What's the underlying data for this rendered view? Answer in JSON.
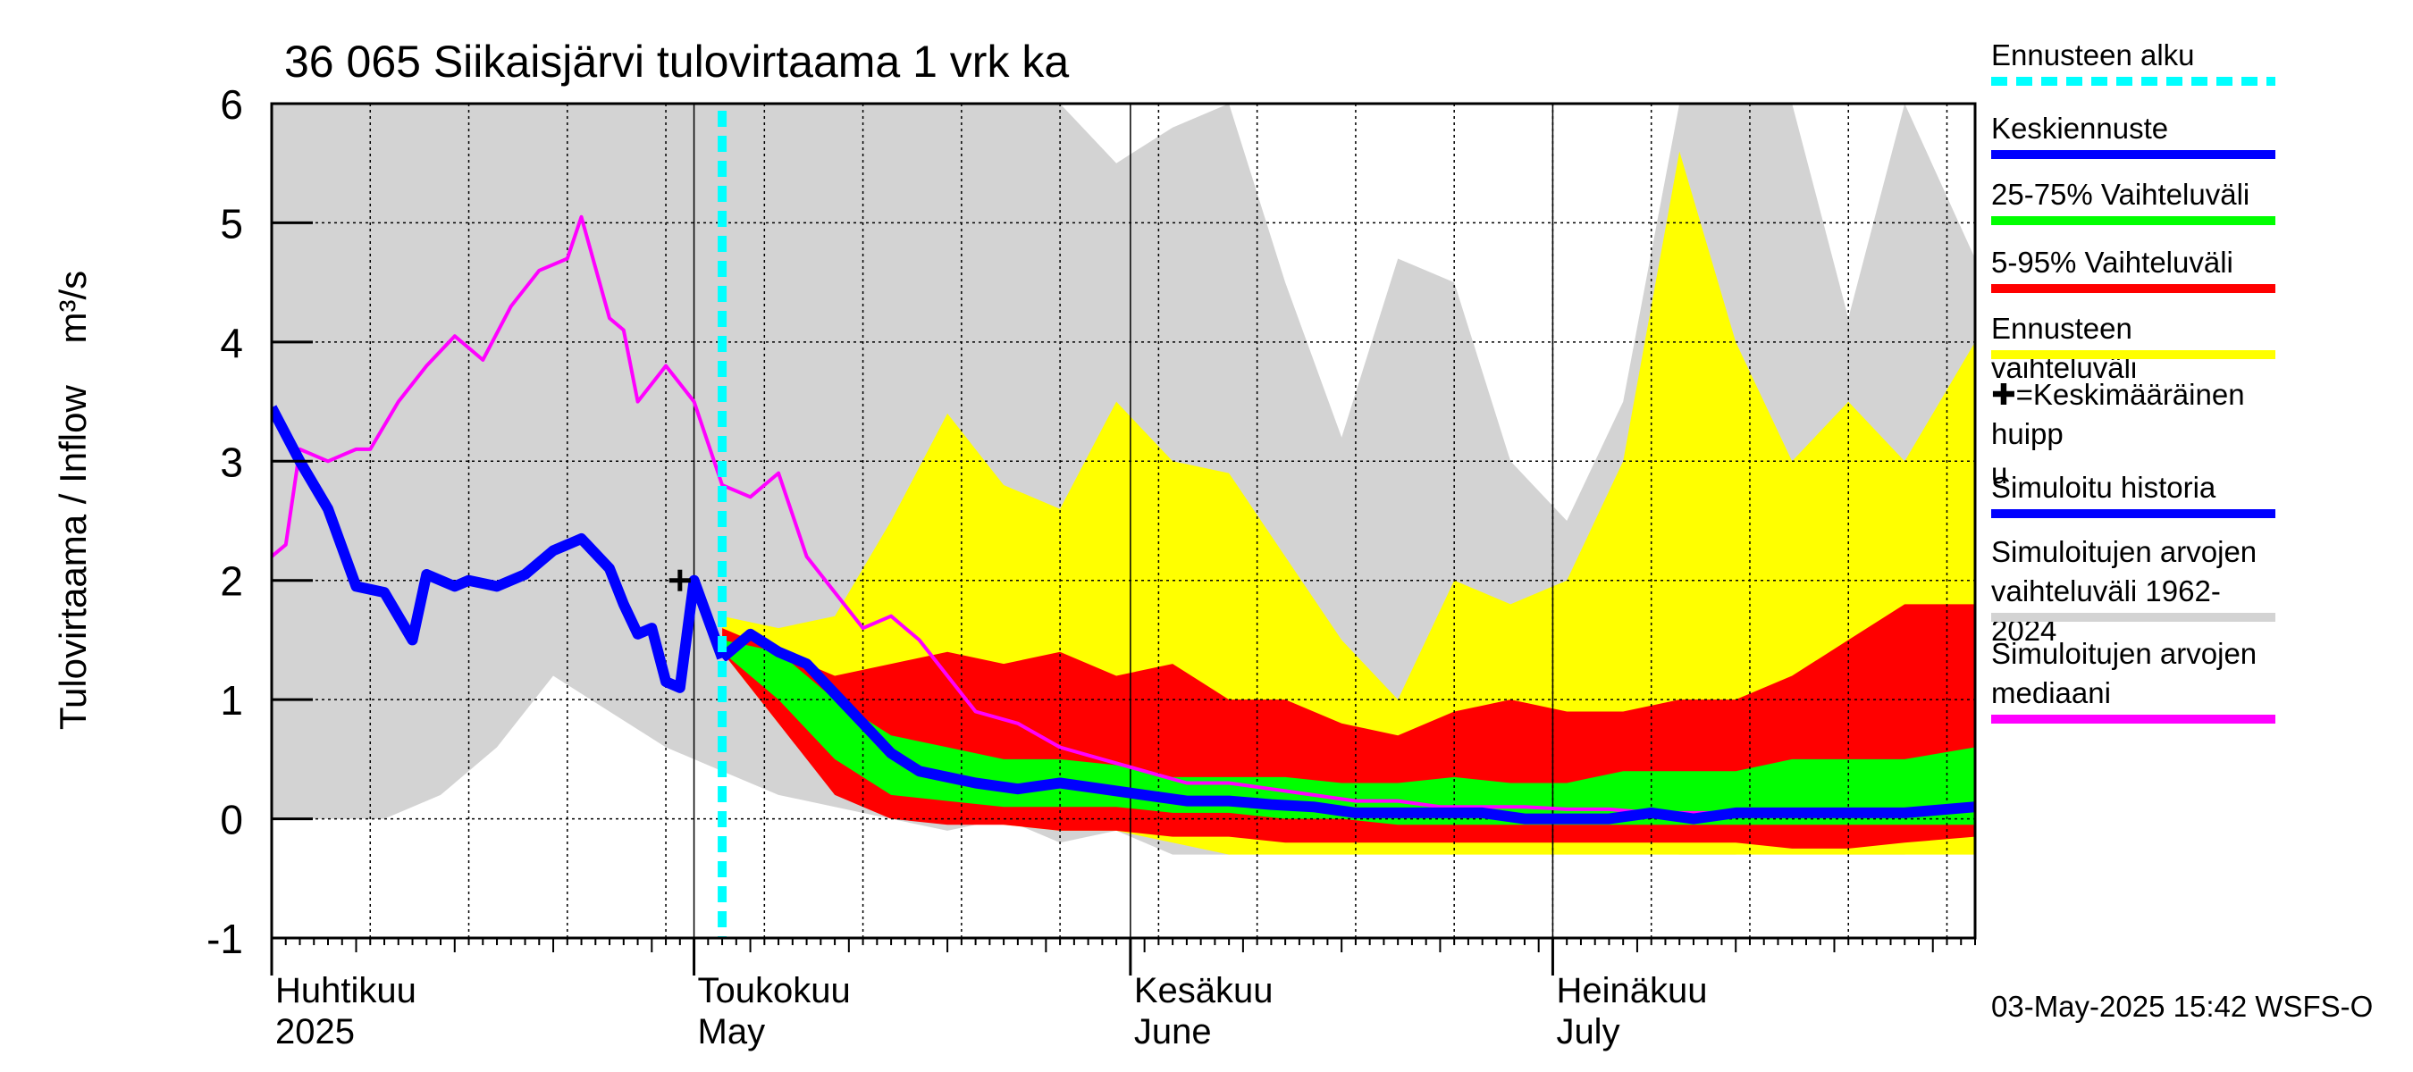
{
  "chart_data": {
    "type": "area",
    "title": "36 065 Siikaisjärvi tulovirtaama 1 vrk ka",
    "ylabel": "Tulovirtaama / Inflow    m³/s",
    "ylim": [
      -1,
      6
    ],
    "yticks": [
      "-1",
      "0",
      "1",
      "2",
      "3",
      "4",
      "5",
      "6"
    ],
    "xlim": [
      "2025-04-01",
      "2025-07-31"
    ],
    "month_labels": [
      {
        "fi": "Huhtikuu",
        "en": "2025",
        "date": "2025-04-01"
      },
      {
        "fi": "Toukokuu",
        "en": "May",
        "date": "2025-05-01"
      },
      {
        "fi": "Kesäkuu",
        "en": "June",
        "date": "2025-06-01"
      },
      {
        "fi": "Heinäkuu",
        "en": "July",
        "date": "2025-07-01"
      }
    ],
    "forecast_start": "2025-05-03",
    "mean_peak": {
      "date": "2025-04-30",
      "value": 2.0
    },
    "grid": true,
    "series": [
      {
        "name": "Simuloitujen arvojen vaihteluväli 1962-2024",
        "kind": "band",
        "color": "#d3d3d3",
        "x": [
          "2025-04-01",
          "2025-04-05",
          "2025-04-09",
          "2025-04-13",
          "2025-04-17",
          "2025-04-21",
          "2025-04-25",
          "2025-04-29",
          "2025-05-03",
          "2025-05-07",
          "2025-05-11",
          "2025-05-15",
          "2025-05-19",
          "2025-05-23",
          "2025-05-27",
          "2025-05-31",
          "2025-06-04",
          "2025-06-08",
          "2025-06-12",
          "2025-06-16",
          "2025-06-20",
          "2025-06-24",
          "2025-06-28",
          "2025-07-02",
          "2025-07-06",
          "2025-07-10",
          "2025-07-14",
          "2025-07-18",
          "2025-07-22",
          "2025-07-26",
          "2025-07-31"
        ],
        "low": [
          0.0,
          0.0,
          0.0,
          0.2,
          0.6,
          1.2,
          0.9,
          0.6,
          0.4,
          0.2,
          0.1,
          0.0,
          -0.1,
          0.0,
          -0.2,
          -0.1,
          -0.3,
          -0.3,
          -0.2,
          -0.2,
          -0.3,
          -0.2,
          -0.2,
          -0.3,
          -0.2,
          -0.3,
          -0.3,
          -0.2,
          -0.3,
          -0.3,
          -0.2
        ],
        "high": [
          6.0,
          6.0,
          6.0,
          6.0,
          6.0,
          6.0,
          6.0,
          6.0,
          6.0,
          6.0,
          6.0,
          6.0,
          6.0,
          6.0,
          6.0,
          5.5,
          5.8,
          6.0,
          4.5,
          3.2,
          4.7,
          4.5,
          3.0,
          2.5,
          3.5,
          6.0,
          6.0,
          6.0,
          4.2,
          6.0,
          4.7
        ]
      },
      {
        "name": "Ennusteen vaihteluväli",
        "kind": "band",
        "color": "#ffff00",
        "x": [
          "2025-05-03",
          "2025-05-07",
          "2025-05-11",
          "2025-05-15",
          "2025-05-19",
          "2025-05-23",
          "2025-05-27",
          "2025-05-31",
          "2025-06-04",
          "2025-06-08",
          "2025-06-12",
          "2025-06-16",
          "2025-06-20",
          "2025-06-24",
          "2025-06-28",
          "2025-07-02",
          "2025-07-06",
          "2025-07-10",
          "2025-07-14",
          "2025-07-18",
          "2025-07-22",
          "2025-07-26",
          "2025-07-31"
        ],
        "low": [
          1.4,
          0.8,
          0.3,
          0.1,
          0.0,
          -0.05,
          -0.1,
          -0.1,
          -0.2,
          -0.3,
          -0.3,
          -0.3,
          -0.3,
          -0.3,
          -0.3,
          -0.3,
          -0.3,
          -0.3,
          -0.3,
          -0.3,
          -0.3,
          -0.3,
          -0.3
        ],
        "high": [
          1.7,
          1.6,
          1.7,
          2.5,
          3.4,
          2.8,
          2.6,
          3.5,
          3.0,
          2.9,
          2.2,
          1.5,
          1.0,
          2.0,
          1.8,
          2.0,
          3.0,
          5.6,
          4.0,
          3.0,
          3.5,
          3.0,
          4.0
        ]
      },
      {
        "name": "5-95% Vaihteluväli",
        "kind": "band",
        "color": "#ff0000",
        "x": [
          "2025-05-03",
          "2025-05-07",
          "2025-05-11",
          "2025-05-15",
          "2025-05-19",
          "2025-05-23",
          "2025-05-27",
          "2025-05-31",
          "2025-06-04",
          "2025-06-08",
          "2025-06-12",
          "2025-06-16",
          "2025-06-20",
          "2025-06-24",
          "2025-06-28",
          "2025-07-02",
          "2025-07-06",
          "2025-07-10",
          "2025-07-14",
          "2025-07-18",
          "2025-07-22",
          "2025-07-26",
          "2025-07-31"
        ],
        "low": [
          1.4,
          0.8,
          0.2,
          0.0,
          -0.05,
          -0.05,
          -0.1,
          -0.1,
          -0.15,
          -0.15,
          -0.2,
          -0.2,
          -0.2,
          -0.2,
          -0.2,
          -0.2,
          -0.2,
          -0.2,
          -0.2,
          -0.25,
          -0.25,
          -0.2,
          -0.15
        ],
        "high": [
          1.6,
          1.4,
          1.2,
          1.3,
          1.4,
          1.3,
          1.4,
          1.2,
          1.3,
          1.0,
          1.0,
          0.8,
          0.7,
          0.9,
          1.0,
          0.9,
          0.9,
          1.0,
          1.0,
          1.2,
          1.5,
          1.8,
          1.8
        ]
      },
      {
        "name": "25-75% Vaihteluväli",
        "kind": "band",
        "color": "#00ff00",
        "x": [
          "2025-05-03",
          "2025-05-07",
          "2025-05-11",
          "2025-05-15",
          "2025-05-19",
          "2025-05-23",
          "2025-05-27",
          "2025-05-31",
          "2025-06-04",
          "2025-06-08",
          "2025-06-12",
          "2025-06-16",
          "2025-06-20",
          "2025-06-24",
          "2025-06-28",
          "2025-07-02",
          "2025-07-06",
          "2025-07-10",
          "2025-07-14",
          "2025-07-18",
          "2025-07-22",
          "2025-07-26",
          "2025-07-31"
        ],
        "low": [
          1.4,
          1.0,
          0.5,
          0.2,
          0.15,
          0.1,
          0.1,
          0.1,
          0.05,
          0.05,
          0.0,
          0.0,
          -0.05,
          -0.05,
          -0.05,
          -0.05,
          -0.05,
          -0.05,
          -0.05,
          -0.05,
          -0.05,
          -0.05,
          -0.05
        ],
        "high": [
          1.5,
          1.4,
          1.0,
          0.7,
          0.6,
          0.5,
          0.5,
          0.45,
          0.35,
          0.35,
          0.35,
          0.3,
          0.3,
          0.35,
          0.3,
          0.3,
          0.4,
          0.4,
          0.4,
          0.5,
          0.5,
          0.5,
          0.6
        ]
      },
      {
        "name": "Simuloitujen arvojen mediaani",
        "kind": "line",
        "color": "#ff00ff",
        "x": [
          "2025-04-01",
          "2025-04-02",
          "2025-04-03",
          "2025-04-05",
          "2025-04-07",
          "2025-04-08",
          "2025-04-10",
          "2025-04-12",
          "2025-04-14",
          "2025-04-16",
          "2025-04-18",
          "2025-04-20",
          "2025-04-22",
          "2025-04-23",
          "2025-04-25",
          "2025-04-26",
          "2025-04-27",
          "2025-04-29",
          "2025-05-01",
          "2025-05-03",
          "2025-05-05",
          "2025-05-07",
          "2025-05-09",
          "2025-05-11",
          "2025-05-13",
          "2025-05-15",
          "2025-05-17",
          "2025-05-19",
          "2025-05-21",
          "2025-05-24",
          "2025-05-27",
          "2025-05-30",
          "2025-06-02",
          "2025-06-05",
          "2025-06-08",
          "2025-06-11",
          "2025-06-14",
          "2025-06-17",
          "2025-06-20",
          "2025-06-23",
          "2025-06-26",
          "2025-06-29",
          "2025-07-02",
          "2025-07-05",
          "2025-07-08",
          "2025-07-11",
          "2025-07-14",
          "2025-07-17",
          "2025-07-20",
          "2025-07-23",
          "2025-07-26",
          "2025-07-31"
        ],
        "y": [
          2.2,
          2.3,
          3.1,
          3.0,
          3.1,
          3.1,
          3.5,
          3.8,
          4.05,
          3.85,
          4.3,
          4.6,
          4.7,
          5.05,
          4.2,
          4.1,
          3.5,
          3.8,
          3.5,
          2.8,
          2.7,
          2.9,
          2.2,
          1.9,
          1.6,
          1.7,
          1.5,
          1.2,
          0.9,
          0.8,
          0.6,
          0.5,
          0.4,
          0.3,
          0.3,
          0.25,
          0.2,
          0.15,
          0.15,
          0.1,
          0.1,
          0.1,
          0.08,
          0.08,
          0.05,
          0.05,
          0.05,
          0.05,
          0.05,
          0.05,
          0.05,
          0.08
        ]
      },
      {
        "name": "Simuloitu historia",
        "kind": "line",
        "color": "#0000ff",
        "x": [
          "2025-04-01",
          "2025-04-03",
          "2025-04-05",
          "2025-04-07",
          "2025-04-09",
          "2025-04-11",
          "2025-04-12",
          "2025-04-14",
          "2025-04-15",
          "2025-04-17",
          "2025-04-19",
          "2025-04-21",
          "2025-04-23",
          "2025-04-25",
          "2025-04-26",
          "2025-04-27",
          "2025-04-28",
          "2025-04-29",
          "2025-04-30",
          "2025-05-01",
          "2025-05-03"
        ],
        "y": [
          3.45,
          3.0,
          2.6,
          1.95,
          1.9,
          1.5,
          2.05,
          1.95,
          2.0,
          1.95,
          2.05,
          2.25,
          2.35,
          2.1,
          1.8,
          1.55,
          1.6,
          1.15,
          1.1,
          2.0,
          1.35
        ]
      },
      {
        "name": "Keskiennuste",
        "kind": "line",
        "color": "#0000ff",
        "x": [
          "2025-05-03",
          "2025-05-05",
          "2025-05-07",
          "2025-05-09",
          "2025-05-11",
          "2025-05-13",
          "2025-05-15",
          "2025-05-17",
          "2025-05-19",
          "2025-05-21",
          "2025-05-24",
          "2025-05-27",
          "2025-05-30",
          "2025-06-02",
          "2025-06-05",
          "2025-06-08",
          "2025-06-11",
          "2025-06-14",
          "2025-06-17",
          "2025-06-20",
          "2025-06-23",
          "2025-06-26",
          "2025-06-29",
          "2025-07-02",
          "2025-07-05",
          "2025-07-08",
          "2025-07-11",
          "2025-07-14",
          "2025-07-17",
          "2025-07-20",
          "2025-07-23",
          "2025-07-26",
          "2025-07-31"
        ],
        "y": [
          1.35,
          1.55,
          1.4,
          1.3,
          1.05,
          0.8,
          0.55,
          0.4,
          0.35,
          0.3,
          0.25,
          0.3,
          0.25,
          0.2,
          0.15,
          0.15,
          0.12,
          0.1,
          0.05,
          0.05,
          0.05,
          0.05,
          0.0,
          0.0,
          0.0,
          0.05,
          0.0,
          0.05,
          0.05,
          0.05,
          0.05,
          0.05,
          0.1
        ]
      }
    ]
  },
  "legend": [
    {
      "label": "Ennusteen alku",
      "color": "#00ffff",
      "style": "dashed"
    },
    {
      "label": "Keskiennuste",
      "color": "#0000ff",
      "style": "solid"
    },
    {
      "label": "25-75% Vaihteluväli",
      "color": "#00ff00",
      "style": "solid"
    },
    {
      "label": "5-95% Vaihteluväli",
      "color": "#ff0000",
      "style": "solid"
    },
    {
      "label": "Ennusteen vaihteluväli",
      "color": "#ffff00",
      "style": "solid"
    },
    {
      "label": "✚=Keskimääräinen huipp\nu",
      "color": "",
      "style": "none"
    },
    {
      "label": "Simuloitu historia",
      "color": "#0000ff",
      "style": "solid"
    },
    {
      "label": "Simuloitujen arvojen\nvaihteluväli 1962-2024",
      "color": "#d3d3d3",
      "style": "solid"
    },
    {
      "label": "Simuloitujen arvojen\nmediaani",
      "color": "#ff00ff",
      "style": "solid"
    }
  ],
  "footer": {
    "timestamp": "03-May-2025 15:42 WSFS-O"
  }
}
